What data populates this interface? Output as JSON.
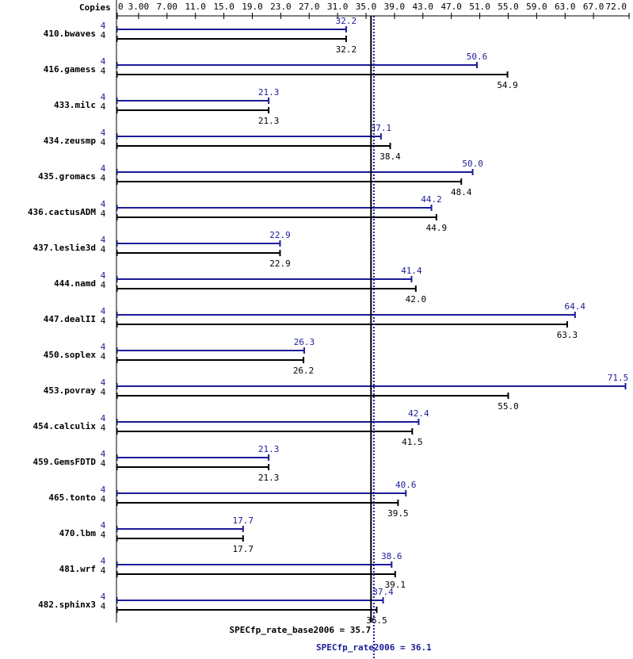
{
  "chart_data": {
    "type": "spec-bar",
    "copies_label": "Copies",
    "categories": [
      "410.bwaves",
      "416.gamess",
      "433.milc",
      "434.zeusmp",
      "435.gromacs",
      "436.cactusADM",
      "437.leslie3d",
      "444.namd",
      "447.dealII",
      "450.soplex",
      "453.povray",
      "454.calculix",
      "459.GemsFDTD",
      "465.tonto",
      "470.lbm",
      "481.wrf",
      "482.sphinx3"
    ],
    "series": [
      {
        "color": "#1c1c99",
        "copies": [
          4,
          4,
          4,
          4,
          4,
          4,
          4,
          4,
          4,
          4,
          4,
          4,
          4,
          4,
          4,
          4,
          4
        ],
        "values": [
          32.2,
          50.6,
          21.3,
          37.1,
          50.0,
          44.2,
          22.9,
          41.4,
          64.4,
          26.3,
          71.5,
          42.4,
          21.3,
          40.6,
          17.7,
          38.6,
          37.4
        ],
        "value_labels": [
          "32.2",
          "50.6",
          "21.3",
          "37.1",
          "50.0",
          "44.2",
          "22.9",
          "41.4",
          "64.4",
          "26.3",
          "71.5",
          "42.4",
          "21.3",
          "40.6",
          "17.7",
          "38.6",
          "37.4"
        ]
      },
      {
        "color": "#000000",
        "copies": [
          4,
          4,
          4,
          4,
          4,
          4,
          4,
          4,
          4,
          4,
          4,
          4,
          4,
          4,
          4,
          4,
          4
        ],
        "values": [
          32.2,
          54.9,
          21.3,
          38.4,
          48.4,
          44.9,
          22.9,
          42.0,
          63.3,
          26.2,
          55.0,
          41.5,
          21.3,
          39.5,
          17.7,
          39.1,
          36.5
        ],
        "value_labels": [
          "32.2",
          "54.9",
          "21.3",
          "38.4",
          "48.4",
          "44.9",
          "22.9",
          "42.0",
          "63.3",
          "26.2",
          "55.0",
          "41.5",
          "21.3",
          "39.5",
          "17.7",
          "39.1",
          "36.5"
        ]
      }
    ],
    "xlim": [
      0,
      72
    ],
    "xticks": [
      0,
      {
        "value": 3,
        "label": "3.00"
      },
      {
        "value": 7,
        "label": "7.00"
      },
      {
        "value": 11,
        "label": "11.0"
      },
      {
        "value": 15,
        "label": "15.0"
      },
      {
        "value": 19,
        "label": "19.0"
      },
      {
        "value": 23,
        "label": "23.0"
      },
      {
        "value": 27,
        "label": "27.0"
      },
      {
        "value": 31,
        "label": "31.0"
      },
      {
        "value": 35,
        "label": "35.0"
      },
      {
        "value": 39,
        "label": "39.0"
      },
      {
        "value": 43,
        "label": "43.0"
      },
      {
        "value": 47,
        "label": "47.0"
      },
      {
        "value": 51,
        "label": "51.0"
      },
      {
        "value": 55,
        "label": "55.0"
      },
      {
        "value": 59,
        "label": "59.0"
      },
      {
        "value": 63,
        "label": "63.0"
      },
      {
        "value": 67,
        "label": "67.0"
      },
      {
        "value": 72,
        "label": "72.0"
      }
    ],
    "reference_lines": [
      {
        "value": 35.7,
        "label": "SPECfp_rate_base2006 = 35.7",
        "color": "#000000",
        "dotted": false
      },
      {
        "value": 36.1,
        "label": "SPECfp_rate2006 = 36.1",
        "color": "#1c1c99",
        "dotted": true
      }
    ]
  }
}
